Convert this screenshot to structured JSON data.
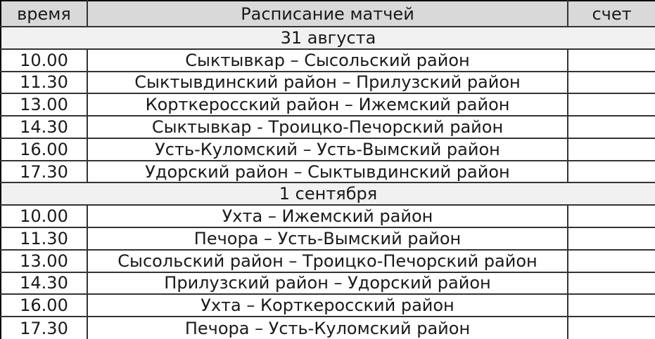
{
  "table": {
    "title": "Расписание матчей",
    "columns": {
      "time": "время",
      "schedule": "Расписание матчей",
      "score": "счет"
    },
    "colors": {
      "header_bg": "#d9d9d9",
      "section_bg": "#f1f1f1",
      "row_bg": "#ffffff",
      "border": "#333333",
      "text": "#1a1a1a"
    },
    "sections": [
      {
        "date": "31 августа",
        "rows": [
          {
            "time": "10.00",
            "match": "Сыктывкар – Сысольский район",
            "score": ""
          },
          {
            "time": "11.30",
            "match": "Сыктывдинский район – Прилузский район",
            "score": ""
          },
          {
            "time": "13.00",
            "match": "Корткеросский район – Ижемский район",
            "score": ""
          },
          {
            "time": "14.30",
            "match": "Сыктывкар - Троицко-Печорский район",
            "score": ""
          },
          {
            "time": "16.00",
            "match": "Усть-Куломский – Усть-Вымский район",
            "score": ""
          },
          {
            "time": "17.30",
            "match": "Удорский район – Сыктывдинский район",
            "score": ""
          }
        ]
      },
      {
        "date": "1 сентября",
        "rows": [
          {
            "time": "10.00",
            "match": "Ухта – Ижемский район",
            "score": ""
          },
          {
            "time": "11.30",
            "match": "Печора – Усть-Вымский район",
            "score": ""
          },
          {
            "time": "13.00",
            "match": "Сысольский район – Троицко-Печорский район",
            "score": ""
          },
          {
            "time": "14.30",
            "match": "Прилузский район – Удорский район",
            "score": ""
          },
          {
            "time": "16.00",
            "match": "Ухта – Корткеросский район",
            "score": ""
          },
          {
            "time": "17.30",
            "match": "Печора – Усть-Куломский район",
            "score": ""
          }
        ]
      }
    ]
  }
}
